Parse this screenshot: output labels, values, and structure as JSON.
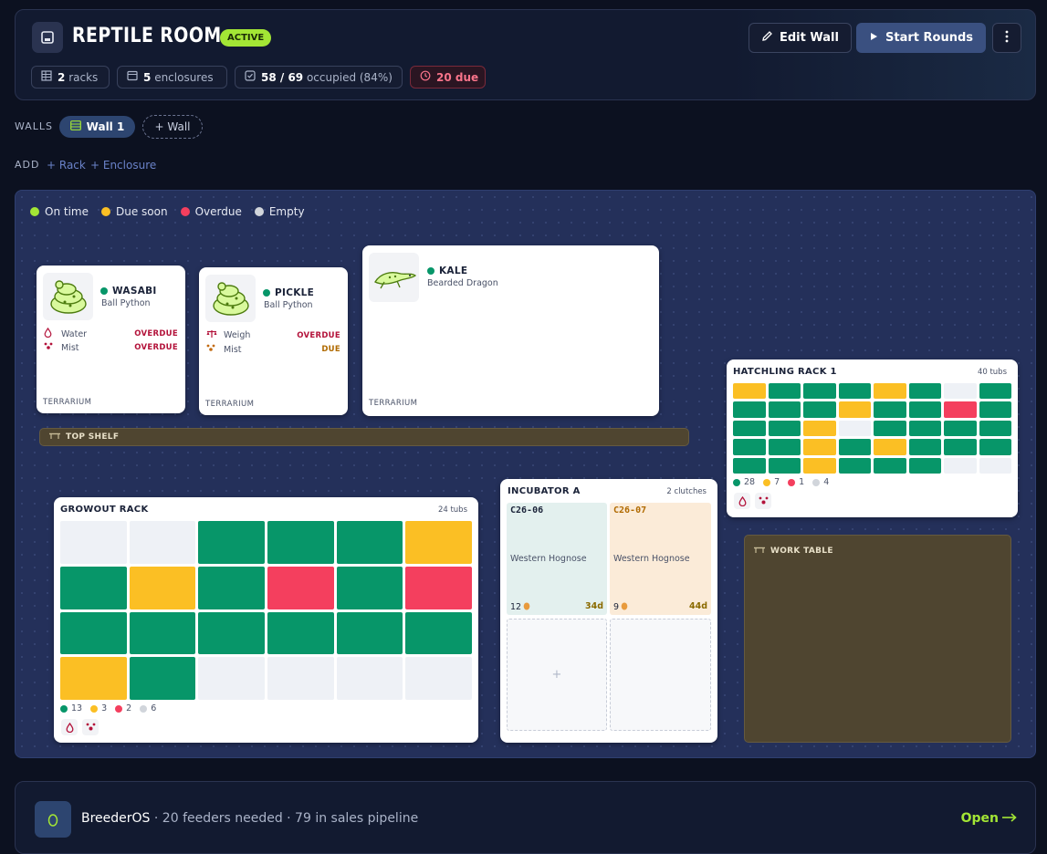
{
  "header": {
    "title": "REPTILE ROOM",
    "status": "ACTIVE",
    "stats": {
      "racks_num": "2",
      "racks_label": "racks",
      "enclosures_num": "5",
      "enclosures_label": "enclosures",
      "occupied_num": "58 / 69",
      "occupied_label": "occupied (84%)",
      "due_label": "20 due"
    },
    "edit_label": "Edit Wall",
    "start_label": "Start Rounds"
  },
  "walls": {
    "label": "WALLS",
    "tabs": [
      {
        "label": "Wall 1"
      }
    ],
    "add_label": "+ Wall"
  },
  "add": {
    "label": "ADD",
    "rack_label": "+ Rack",
    "enclosure_label": "+ Enclosure"
  },
  "legend": [
    {
      "label": "On time",
      "color": "#a3e635"
    },
    {
      "label": "Due soon",
      "color": "#fbbf24"
    },
    {
      "label": "Overdue",
      "color": "#f43f5e"
    },
    {
      "label": "Empty",
      "color": "#d1d5db"
    }
  ],
  "enclosures": [
    {
      "name": "WASABI",
      "species": "Ball Python",
      "type": "TERRARIUM",
      "tasks": [
        {
          "icon": "water-drop-icon",
          "label": "Water",
          "status": "OVERDUE"
        },
        {
          "icon": "mist-icon",
          "label": "Mist",
          "status": "OVERDUE"
        }
      ]
    },
    {
      "name": "PICKLE",
      "species": "Ball Python",
      "type": "TERRARIUM",
      "tasks": [
        {
          "icon": "scale-icon",
          "label": "Weigh",
          "status": "OVERDUE"
        },
        {
          "icon": "mist-icon",
          "label": "Mist",
          "status": "DUE"
        }
      ]
    },
    {
      "name": "KALE",
      "species": "Bearded Dragon",
      "type": "TERRARIUM",
      "tasks": []
    }
  ],
  "shelves": {
    "top": "TOP SHELF",
    "work": "WORK TABLE"
  },
  "growout_rack": {
    "title": "GROWOUT RACK",
    "count": "24 tubs",
    "cols": 6,
    "cells": [
      "e",
      "e",
      "g",
      "g",
      "g",
      "y",
      "g",
      "y",
      "g",
      "r",
      "g",
      "r",
      "g",
      "g",
      "g",
      "g",
      "g",
      "g",
      "y",
      "g",
      "e",
      "e",
      "e",
      "e"
    ],
    "totals": {
      "green": "13",
      "yellow": "3",
      "red": "2",
      "empty": "6"
    }
  },
  "hatchling_rack": {
    "title": "HATCHLING RACK 1",
    "count": "40 tubs",
    "cols": 8,
    "cells": [
      "y",
      "g",
      "g",
      "g",
      "y",
      "g",
      "e",
      "g",
      "g",
      "g",
      "g",
      "y",
      "g",
      "g",
      "r",
      "g",
      "g",
      "g",
      "y",
      "e",
      "g",
      "g",
      "g",
      "g",
      "g",
      "g",
      "y",
      "g",
      "y",
      "g",
      "g",
      "g",
      "g",
      "g",
      "y",
      "g",
      "g",
      "g",
      "e",
      "e"
    ],
    "totals": {
      "green": "28",
      "yellow": "7",
      "red": "1",
      "empty": "4"
    }
  },
  "incubator": {
    "title": "INCUBATOR A",
    "count": "2 clutches",
    "clutches": [
      {
        "id": "C26-06",
        "species": "Western Hognose",
        "eggs": "12",
        "days": "34d"
      },
      {
        "id": "C26-07",
        "species": "Western Hognose",
        "eggs": "9",
        "days": "44d"
      }
    ],
    "add_symbol": "+"
  },
  "footer": {
    "app_name": "BreederOS",
    "summary": " · 20 feeders needed · 79 in sales pipeline",
    "open_label": "Open"
  }
}
